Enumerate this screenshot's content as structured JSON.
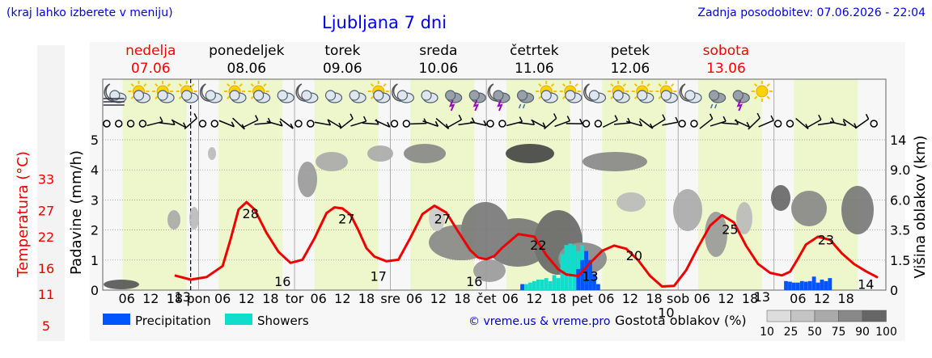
{
  "header": {
    "left_note": "(kraj lahko izberete v meniju)",
    "title": "Ljubljana 7 dni",
    "updated": "Zadnja posodobitev: 07.06.2026 - 22:04"
  },
  "colors": {
    "temperature_line": "#ee0000",
    "precipitation": "#0055ff",
    "showers": "#11ddcc",
    "daytime_band": "#eef6cc",
    "weekend_day": "#ff0000",
    "weekday": "#000000",
    "link": "#0000cc"
  },
  "days": [
    {
      "name": "nedelja",
      "date": "07.06",
      "weekend": true,
      "icons": [
        "moon-cloud-fog-icon",
        "sun-cloud-icon",
        "sun-cloud-icon",
        "sun-cloud-icon"
      ]
    },
    {
      "name": "ponedeljek",
      "date": "08.06",
      "weekend": false,
      "icons": [
        "moon-cloud-icon",
        "sun-cloud-icon",
        "sun-cloud-icon",
        "cloud-icon"
      ]
    },
    {
      "name": "torek",
      "date": "09.06",
      "weekend": false,
      "icons": [
        "moon-cloud-icon",
        "cloud-icon",
        "cloud-icon",
        "sun-cloud-icon"
      ]
    },
    {
      "name": "sreda",
      "date": "10.06",
      "weekend": false,
      "icons": [
        "moon-cloud-icon",
        "cloud-icon",
        "thunder-icon",
        "thunder-icon"
      ]
    },
    {
      "name": "četrtek",
      "date": "11.06",
      "weekend": false,
      "icons": [
        "moon-thunder-icon",
        "rain-icon",
        "sun-cloud-icon",
        "sun-cloud-icon"
      ]
    },
    {
      "name": "petek",
      "date": "12.06",
      "weekend": false,
      "icons": [
        "moon-cloud-icon",
        "sun-cloud-icon",
        "sun-cloud-icon",
        "sun-cloud-icon"
      ]
    },
    {
      "name": "sobota",
      "date": "13.06",
      "weekend": true,
      "icons": [
        "moon-cloud-icon",
        "rain-icon",
        "thunder-icon",
        "sun-icon"
      ]
    }
  ],
  "chart_data": {
    "type": "line",
    "x_axis": {
      "hour_ticks": [
        "06",
        "12",
        "18"
      ],
      "day_ticks": [
        "pon",
        "tor",
        "sre",
        "čet",
        "pet",
        "sob"
      ]
    },
    "y_left_precip": {
      "label": "Padavine (mm/h)",
      "ticks": [
        0,
        1,
        2,
        3,
        4,
        5
      ],
      "ylim": [
        0,
        5
      ]
    },
    "y_left_temp": {
      "label": "Temperatura (°C)",
      "ticks": [
        5,
        11,
        16,
        22,
        27,
        33
      ]
    },
    "y_right_cloud": {
      "label": "Višina oblakov (km)",
      "ticks": [
        "0",
        "1.5",
        "3.5",
        "6.0",
        "9.0",
        "14"
      ]
    },
    "temperature": {
      "x_hours": [
        18,
        22,
        26,
        30,
        32,
        34,
        36,
        38,
        41,
        44,
        47,
        50,
        53,
        56,
        58,
        60,
        62,
        64,
        66,
        68,
        71,
        74,
        77,
        80,
        83,
        86,
        89,
        92,
        94,
        96,
        98,
        100,
        104,
        108,
        111,
        114,
        116,
        119,
        122,
        125,
        128,
        131,
        134,
        137,
        140,
        143,
        146,
        149,
        152,
        155,
        158,
        161,
        164,
        167,
        170,
        172,
        174,
        176,
        179,
        182,
        185,
        188,
        191,
        194
      ],
      "values": [
        14.6,
        13.8,
        14.3,
        16.4,
        21.5,
        27.2,
        28.6,
        27.2,
        22.7,
        19.1,
        17.0,
        17.6,
        21.7,
        26.5,
        27.6,
        27.4,
        26.2,
        23.2,
        19.8,
        18.2,
        17.3,
        17.6,
        21.8,
        26.3,
        27.9,
        26.6,
        22.9,
        19.4,
        18.0,
        17.7,
        18.3,
        19.9,
        22.5,
        22.0,
        18.5,
        15.8,
        14.8,
        14.5,
        17.0,
        19.3,
        20.3,
        19.7,
        17.5,
        14.5,
        12.5,
        12.6,
        15.6,
        20.0,
        24.1,
        26.1,
        24.7,
        20.3,
        16.8,
        15.1,
        14.6,
        15.3,
        17.8,
        20.5,
        22.0,
        21.4,
        18.8,
        16.8,
        15.4,
        14.2
      ]
    },
    "temp_labels": [
      {
        "hour": 20,
        "value": "13"
      },
      {
        "hour": 37,
        "value": "28"
      },
      {
        "hour": 45,
        "value": "16"
      },
      {
        "hour": 61,
        "value": "27"
      },
      {
        "hour": 69,
        "value": "17"
      },
      {
        "hour": 85,
        "value": "27"
      },
      {
        "hour": 93,
        "value": "16"
      },
      {
        "hour": 109,
        "value": "22"
      },
      {
        "hour": 122,
        "value": "13"
      },
      {
        "hour": 133,
        "value": "20"
      },
      {
        "hour": 141,
        "value": "10"
      },
      {
        "hour": 157,
        "value": "25"
      },
      {
        "hour": 165,
        "value": "13"
      },
      {
        "hour": 181,
        "value": "23"
      },
      {
        "hour": 191,
        "value": "14"
      }
    ],
    "showers": {
      "x_hours": [
        106,
        107,
        108,
        109,
        110,
        111,
        112,
        113,
        114,
        115,
        116,
        117,
        118,
        119,
        120,
        121,
        122
      ],
      "values": [
        0.2,
        0.25,
        0.3,
        0.35,
        0.35,
        0.4,
        0.3,
        0.5,
        0.4,
        1.2,
        1.5,
        1.55,
        1.5,
        1.3,
        1.5,
        1.2,
        0.6
      ]
    },
    "precipitation": {
      "x_hours": [
        105,
        119,
        120,
        121,
        122,
        123,
        124,
        171,
        172,
        173,
        174,
        175,
        176,
        177,
        178,
        179,
        180,
        181,
        182
      ],
      "values": [
        0.2,
        0.7,
        1.0,
        1.3,
        1.0,
        0.55,
        0.2,
        0.3,
        0.28,
        0.25,
        0.25,
        0.3,
        0.28,
        0.3,
        0.45,
        0.25,
        0.35,
        0.3,
        0.4
      ]
    },
    "legend": [
      "Precipitation",
      "Showers"
    ],
    "cloud_scale": {
      "label": "Gostota oblakov (%)",
      "ticks": [
        "10",
        "25",
        "50",
        "75",
        "90",
        "100"
      ]
    }
  },
  "footer": {
    "credit": "© vreme.us & vreme.pro"
  }
}
